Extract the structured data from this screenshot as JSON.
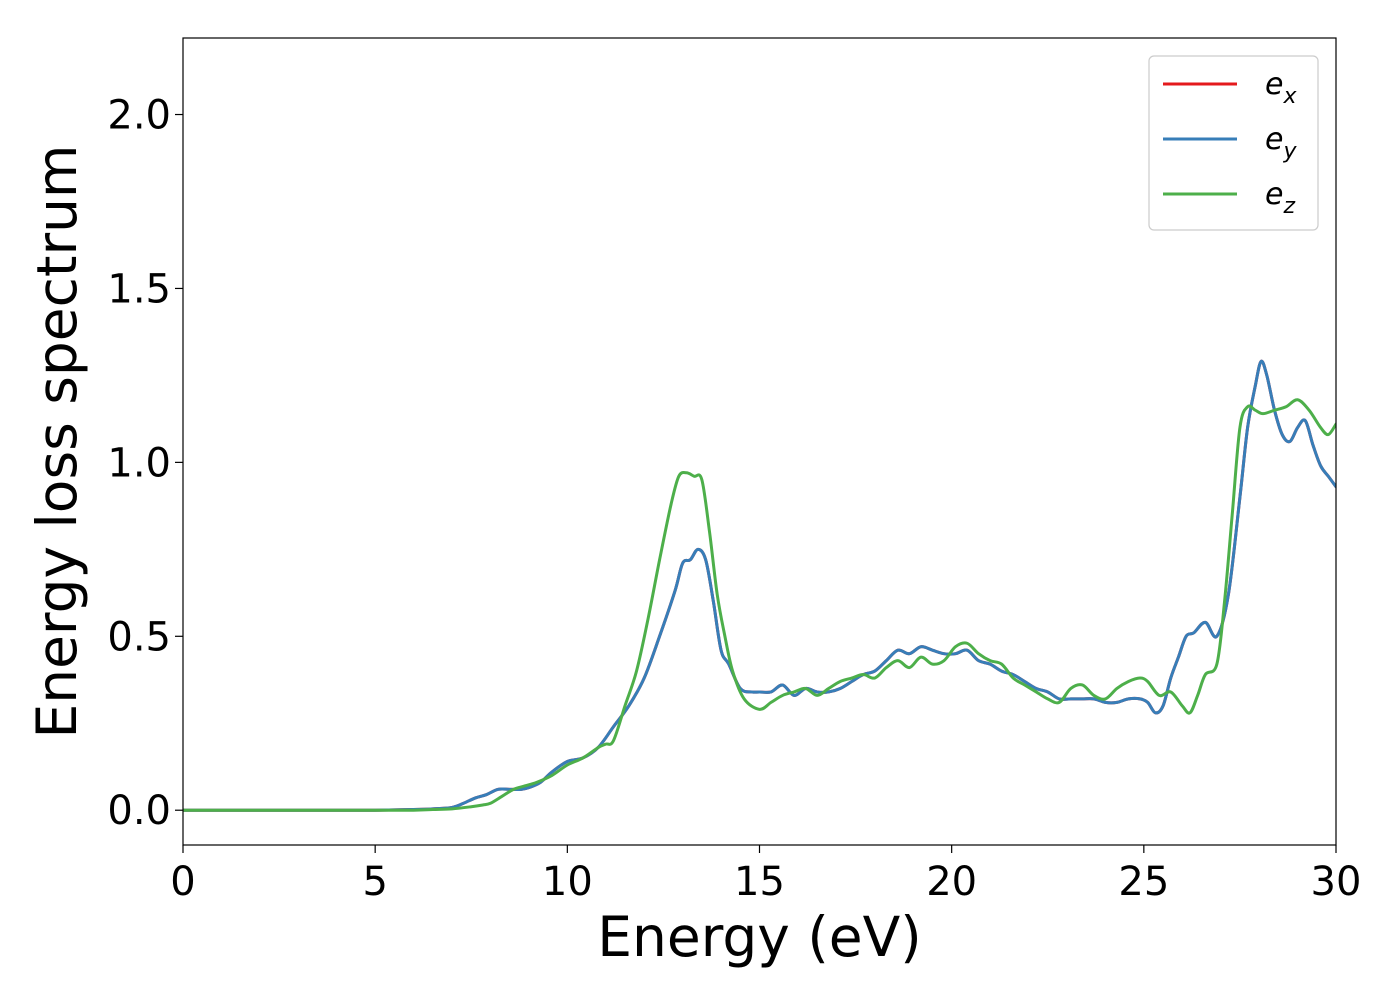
{
  "chart_data": {
    "type": "line",
    "xlabel": "Energy (eV)",
    "ylabel": "Energy loss spectrum",
    "xlim": [
      0,
      30
    ],
    "ylim": [
      -0.1,
      2.22
    ],
    "xticks": [
      0,
      5,
      10,
      15,
      20,
      25,
      30
    ],
    "yticks": [
      0.0,
      0.5,
      1.0,
      1.5,
      2.0
    ],
    "xtick_labels": [
      "0",
      "5",
      "10",
      "15",
      "20",
      "25",
      "30"
    ],
    "ytick_labels": [
      "0.0",
      "0.5",
      "1.0",
      "1.5",
      "2.0"
    ],
    "grid": false,
    "legend_position": "top-right",
    "series": [
      {
        "name": "e_x",
        "label_base": "e",
        "label_sub": "x",
        "color": "#e41a1c",
        "x": [
          0,
          2,
          4,
          5,
          6,
          6.5,
          7,
          7.3,
          7.6,
          7.9,
          8.2,
          8.5,
          8.8,
          9.0,
          9.3,
          9.6,
          10.0,
          10.4,
          10.8,
          11.2,
          11.6,
          12.0,
          12.4,
          12.8,
          13.0,
          13.2,
          13.4,
          13.6,
          13.8,
          14.0,
          14.2,
          14.5,
          14.8,
          15.0,
          15.3,
          15.6,
          15.9,
          16.2,
          16.5,
          16.8,
          17.1,
          17.4,
          17.7,
          18.0,
          18.3,
          18.6,
          18.9,
          19.2,
          19.5,
          19.8,
          20.1,
          20.4,
          20.7,
          21.0,
          21.3,
          21.6,
          21.9,
          22.2,
          22.5,
          22.8,
          23.1,
          23.4,
          23.7,
          24.0,
          24.3,
          24.6,
          24.9,
          25.1,
          25.3,
          25.5,
          25.7,
          25.9,
          26.1,
          26.3,
          26.6,
          26.9,
          27.2,
          27.5,
          27.7,
          27.9,
          28.05,
          28.2,
          28.4,
          28.6,
          28.8,
          29.0,
          29.2,
          29.4,
          29.6,
          29.8,
          30.0
        ],
        "y": [
          0.0,
          0.0,
          0.0,
          0.0,
          0.002,
          0.004,
          0.008,
          0.02,
          0.035,
          0.045,
          0.06,
          0.06,
          0.06,
          0.065,
          0.08,
          0.11,
          0.14,
          0.15,
          0.18,
          0.24,
          0.3,
          0.38,
          0.5,
          0.63,
          0.71,
          0.72,
          0.75,
          0.72,
          0.6,
          0.46,
          0.42,
          0.35,
          0.34,
          0.34,
          0.34,
          0.36,
          0.33,
          0.35,
          0.34,
          0.34,
          0.35,
          0.37,
          0.39,
          0.4,
          0.43,
          0.46,
          0.45,
          0.47,
          0.46,
          0.45,
          0.45,
          0.46,
          0.43,
          0.42,
          0.4,
          0.39,
          0.37,
          0.35,
          0.34,
          0.32,
          0.32,
          0.32,
          0.32,
          0.31,
          0.31,
          0.32,
          0.32,
          0.31,
          0.28,
          0.3,
          0.38,
          0.44,
          0.5,
          0.51,
          0.54,
          0.5,
          0.62,
          0.9,
          1.1,
          1.22,
          1.29,
          1.25,
          1.15,
          1.08,
          1.06,
          1.1,
          1.12,
          1.05,
          0.99,
          0.96,
          0.93
        ]
      },
      {
        "name": "e_y",
        "label_base": "e",
        "label_sub": "y",
        "color": "#377eb8",
        "x": [
          0,
          2,
          4,
          5,
          6,
          6.5,
          7,
          7.3,
          7.6,
          7.9,
          8.2,
          8.5,
          8.8,
          9.0,
          9.3,
          9.6,
          10.0,
          10.4,
          10.8,
          11.2,
          11.6,
          12.0,
          12.4,
          12.8,
          13.0,
          13.2,
          13.4,
          13.6,
          13.8,
          14.0,
          14.2,
          14.5,
          14.8,
          15.0,
          15.3,
          15.6,
          15.9,
          16.2,
          16.5,
          16.8,
          17.1,
          17.4,
          17.7,
          18.0,
          18.3,
          18.6,
          18.9,
          19.2,
          19.5,
          19.8,
          20.1,
          20.4,
          20.7,
          21.0,
          21.3,
          21.6,
          21.9,
          22.2,
          22.5,
          22.8,
          23.1,
          23.4,
          23.7,
          24.0,
          24.3,
          24.6,
          24.9,
          25.1,
          25.3,
          25.5,
          25.7,
          25.9,
          26.1,
          26.3,
          26.6,
          26.9,
          27.2,
          27.5,
          27.7,
          27.9,
          28.05,
          28.2,
          28.4,
          28.6,
          28.8,
          29.0,
          29.2,
          29.4,
          29.6,
          29.8,
          30.0
        ],
        "y": [
          0.0,
          0.0,
          0.0,
          0.0,
          0.002,
          0.004,
          0.008,
          0.02,
          0.035,
          0.045,
          0.06,
          0.06,
          0.06,
          0.065,
          0.08,
          0.11,
          0.14,
          0.15,
          0.18,
          0.24,
          0.3,
          0.38,
          0.5,
          0.63,
          0.71,
          0.72,
          0.75,
          0.72,
          0.6,
          0.46,
          0.42,
          0.35,
          0.34,
          0.34,
          0.34,
          0.36,
          0.33,
          0.35,
          0.34,
          0.34,
          0.35,
          0.37,
          0.39,
          0.4,
          0.43,
          0.46,
          0.45,
          0.47,
          0.46,
          0.45,
          0.45,
          0.46,
          0.43,
          0.42,
          0.4,
          0.39,
          0.37,
          0.35,
          0.34,
          0.32,
          0.32,
          0.32,
          0.32,
          0.31,
          0.31,
          0.32,
          0.32,
          0.31,
          0.28,
          0.3,
          0.38,
          0.44,
          0.5,
          0.51,
          0.54,
          0.5,
          0.62,
          0.9,
          1.1,
          1.22,
          1.29,
          1.25,
          1.15,
          1.08,
          1.06,
          1.1,
          1.12,
          1.05,
          0.99,
          0.96,
          0.93
        ]
      },
      {
        "name": "e_z",
        "label_base": "e",
        "label_sub": "z",
        "color": "#4daf4a",
        "x": [
          0,
          2,
          4,
          5,
          6,
          6.5,
          7,
          7.5,
          7.8,
          8.0,
          8.3,
          8.6,
          8.9,
          9.2,
          9.6,
          10.0,
          10.4,
          10.8,
          11.0,
          11.2,
          11.5,
          11.8,
          12.1,
          12.4,
          12.7,
          12.9,
          13.1,
          13.3,
          13.5,
          13.7,
          13.9,
          14.1,
          14.3,
          14.6,
          15.0,
          15.3,
          15.6,
          15.9,
          16.2,
          16.5,
          16.8,
          17.1,
          17.4,
          17.7,
          18.0,
          18.3,
          18.6,
          18.9,
          19.2,
          19.5,
          19.8,
          20.1,
          20.4,
          20.7,
          21.0,
          21.3,
          21.6,
          21.9,
          22.2,
          22.5,
          22.8,
          23.1,
          23.4,
          23.7,
          24.0,
          24.3,
          24.6,
          24.9,
          25.1,
          25.4,
          25.7,
          26.0,
          26.2,
          26.4,
          26.6,
          26.9,
          27.1,
          27.3,
          27.5,
          27.7,
          27.9,
          28.1,
          28.4,
          28.7,
          29.0,
          29.3,
          29.6,
          29.8,
          30.0
        ],
        "y": [
          0.0,
          0.0,
          0.0,
          0.0,
          0.0,
          0.002,
          0.004,
          0.01,
          0.015,
          0.02,
          0.04,
          0.06,
          0.07,
          0.08,
          0.1,
          0.13,
          0.15,
          0.18,
          0.19,
          0.2,
          0.3,
          0.4,
          0.55,
          0.72,
          0.88,
          0.96,
          0.97,
          0.96,
          0.95,
          0.8,
          0.62,
          0.5,
          0.4,
          0.32,
          0.29,
          0.31,
          0.33,
          0.34,
          0.35,
          0.33,
          0.35,
          0.37,
          0.38,
          0.39,
          0.38,
          0.41,
          0.43,
          0.41,
          0.44,
          0.42,
          0.43,
          0.47,
          0.48,
          0.45,
          0.43,
          0.42,
          0.38,
          0.36,
          0.34,
          0.32,
          0.31,
          0.35,
          0.36,
          0.33,
          0.32,
          0.35,
          0.37,
          0.38,
          0.37,
          0.33,
          0.34,
          0.3,
          0.28,
          0.33,
          0.39,
          0.42,
          0.6,
          0.85,
          1.1,
          1.16,
          1.15,
          1.14,
          1.15,
          1.16,
          1.18,
          1.15,
          1.1,
          1.08,
          1.11
        ]
      }
    ]
  }
}
